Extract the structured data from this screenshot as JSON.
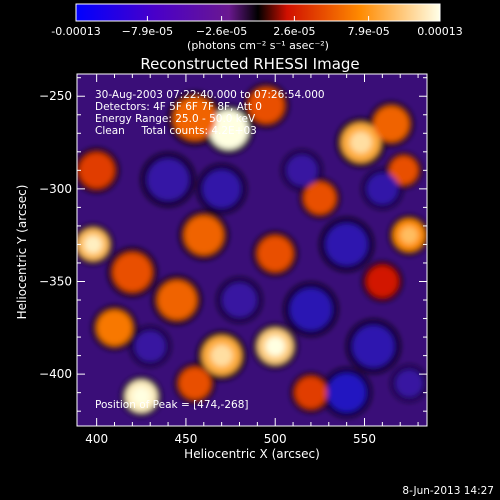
{
  "colorbar": {
    "tick_labels": [
      "-0.00013",
      "−7.9e-05",
      "−2.6e-05",
      "2.6e-05",
      "7.9e-05",
      "0.00013"
    ],
    "tick_values": [
      -0.00013,
      -7.9e-05,
      -2.6e-05,
      2.6e-05,
      7.9e-05,
      0.00013
    ],
    "range": [
      -0.00013,
      0.00013
    ],
    "unit_label": "(photons cm⁻² s⁻¹ asec⁻²)",
    "colors": [
      "#0000ff",
      "#3a00c0",
      "#7a1880",
      "#ff2000",
      "#ff9000",
      "#ffffe0"
    ]
  },
  "chart_data": {
    "type": "heatmap",
    "title": "Reconstructed RHESSI Image",
    "xlabel": "Heliocentric X (arcsec)",
    "ylabel": "Heliocentric Y (arcsec)",
    "xlim": [
      389,
      585
    ],
    "ylim": [
      -428,
      -238
    ],
    "x_ticks": [
      400,
      450,
      500,
      550
    ],
    "x_tick_labels": [
      "400",
      "450",
      "500",
      "550"
    ],
    "y_ticks": [
      -250,
      -300,
      -350,
      -400
    ],
    "y_tick_labels": [
      "−250",
      "−300",
      "−350",
      "−400"
    ],
    "annotations": [
      "30-Aug-2003 07:22:40.000 to 07:26:54.000",
      "Detectors: 4F 5F 6F 7F 8F, Att 0",
      "Energy Range: 25.0 - 50.0 keV",
      "Clean     Total counts: 4.2E+03",
      "Position of Peak = [474,-268]"
    ],
    "peak": {
      "x": 474,
      "y": -268
    },
    "blobs": [
      {
        "x": 474,
        "y": -268,
        "v": 1.0,
        "r": 11
      },
      {
        "x": 455,
        "y": -262,
        "v": 0.55,
        "r": 12
      },
      {
        "x": 495,
        "y": -255,
        "v": 0.5,
        "r": 10
      },
      {
        "x": 548,
        "y": -275,
        "v": 0.75,
        "r": 11
      },
      {
        "x": 565,
        "y": -265,
        "v": 0.55,
        "r": 10
      },
      {
        "x": 572,
        "y": -290,
        "v": 0.5,
        "r": 8
      },
      {
        "x": 400,
        "y": -290,
        "v": 0.45,
        "r": 10
      },
      {
        "x": 398,
        "y": -330,
        "v": 0.8,
        "r": 9
      },
      {
        "x": 420,
        "y": -345,
        "v": 0.5,
        "r": 11
      },
      {
        "x": 410,
        "y": -375,
        "v": 0.6,
        "r": 10
      },
      {
        "x": 460,
        "y": -325,
        "v": 0.55,
        "r": 11
      },
      {
        "x": 445,
        "y": -360,
        "v": 0.55,
        "r": 11
      },
      {
        "x": 500,
        "y": -335,
        "v": 0.5,
        "r": 10
      },
      {
        "x": 525,
        "y": -305,
        "v": 0.5,
        "r": 9
      },
      {
        "x": 575,
        "y": -325,
        "v": 0.65,
        "r": 9
      },
      {
        "x": 560,
        "y": -350,
        "v": 0.35,
        "r": 9
      },
      {
        "x": 470,
        "y": -390,
        "v": 0.75,
        "r": 11
      },
      {
        "x": 500,
        "y": -385,
        "v": 0.85,
        "r": 10
      },
      {
        "x": 455,
        "y": -405,
        "v": 0.5,
        "r": 9
      },
      {
        "x": 425,
        "y": -412,
        "v": 0.95,
        "r": 9
      },
      {
        "x": 520,
        "y": -410,
        "v": 0.45,
        "r": 9
      },
      {
        "x": 440,
        "y": -295,
        "v": -0.35,
        "r": 12
      },
      {
        "x": 470,
        "y": -300,
        "v": -0.4,
        "r": 11
      },
      {
        "x": 540,
        "y": -330,
        "v": -0.5,
        "r": 12
      },
      {
        "x": 520,
        "y": -365,
        "v": -0.55,
        "r": 12
      },
      {
        "x": 555,
        "y": -385,
        "v": -0.5,
        "r": 12
      },
      {
        "x": 540,
        "y": -410,
        "v": -0.75,
        "r": 11
      },
      {
        "x": 560,
        "y": -300,
        "v": -0.4,
        "r": 9
      },
      {
        "x": 480,
        "y": -360,
        "v": -0.3,
        "r": 10
      },
      {
        "x": 430,
        "y": -385,
        "v": -0.3,
        "r": 9
      },
      {
        "x": 515,
        "y": -290,
        "v": -0.3,
        "r": 9
      },
      {
        "x": 575,
        "y": -405,
        "v": -0.3,
        "r": 8
      }
    ]
  },
  "footer": {
    "timestamp": "8-Jun-2013 14:27"
  }
}
